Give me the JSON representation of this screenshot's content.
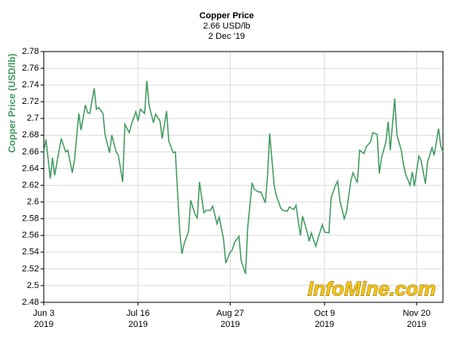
{
  "chart_data": {
    "type": "line",
    "title": "Copper Price",
    "subtitle": "2.66 USD/lb",
    "date_label": "2 Dec '19",
    "ylabel": "Copper Price (USD/lb)",
    "watermark": "InfoMine.com",
    "grid": true,
    "x": [
      "2019-06-03",
      "2019-06-04",
      "2019-06-06",
      "2019-06-07",
      "2019-06-08",
      "2019-06-10",
      "2019-06-11",
      "2019-06-13",
      "2019-06-14",
      "2019-06-16",
      "2019-06-17",
      "2019-06-19",
      "2019-06-20",
      "2019-06-22",
      "2019-06-23",
      "2019-06-24",
      "2019-06-26",
      "2019-06-27",
      "2019-06-28",
      "2019-06-30",
      "2019-07-01",
      "2019-07-03",
      "2019-07-04",
      "2019-07-06",
      "2019-07-07",
      "2019-07-09",
      "2019-07-10",
      "2019-07-12",
      "2019-07-13",
      "2019-07-15",
      "2019-07-16",
      "2019-07-17",
      "2019-07-19",
      "2019-07-20",
      "2019-07-21",
      "2019-07-23",
      "2019-07-24",
      "2019-07-26",
      "2019-07-27",
      "2019-07-29",
      "2019-07-30",
      "2019-08-01",
      "2019-08-02",
      "2019-08-04",
      "2019-08-05",
      "2019-08-06",
      "2019-08-08",
      "2019-08-09",
      "2019-08-11",
      "2019-08-12",
      "2019-08-13",
      "2019-08-15",
      "2019-08-16",
      "2019-08-18",
      "2019-08-19",
      "2019-08-21",
      "2019-08-22",
      "2019-08-24",
      "2019-08-25",
      "2019-08-27",
      "2019-08-28",
      "2019-08-29",
      "2019-08-31",
      "2019-09-01",
      "2019-09-03",
      "2019-09-04",
      "2019-09-06",
      "2019-09-07",
      "2019-09-09",
      "2019-09-10",
      "2019-09-12",
      "2019-09-13",
      "2019-09-14",
      "2019-09-16",
      "2019-09-17",
      "2019-09-19",
      "2019-09-20",
      "2019-09-22",
      "2019-09-23",
      "2019-09-25",
      "2019-09-26",
      "2019-09-28",
      "2019-09-29",
      "2019-10-01",
      "2019-10-02",
      "2019-10-03",
      "2019-10-05",
      "2019-10-06",
      "2019-10-08",
      "2019-10-09",
      "2019-10-11",
      "2019-10-12",
      "2019-10-14",
      "2019-10-15",
      "2019-10-16",
      "2019-10-18",
      "2019-10-19",
      "2019-10-21",
      "2019-10-22",
      "2019-10-24",
      "2019-10-25",
      "2019-10-27",
      "2019-10-28",
      "2019-10-30",
      "2019-10-31",
      "2019-11-02",
      "2019-11-03",
      "2019-11-04",
      "2019-11-06",
      "2019-11-07",
      "2019-11-08",
      "2019-11-10",
      "2019-11-11",
      "2019-11-13",
      "2019-11-14",
      "2019-11-15",
      "2019-11-17",
      "2019-11-18",
      "2019-11-19",
      "2019-11-21",
      "2019-11-22",
      "2019-11-24",
      "2019-11-25",
      "2019-11-27",
      "2019-11-28",
      "2019-11-30",
      "2019-12-01",
      "2019-12-02"
    ],
    "series": [
      {
        "name": "Copper Price",
        "color": "#3f9a5f",
        "values": [
          2.66,
          2.675,
          2.628,
          2.653,
          2.632,
          2.662,
          2.676,
          2.66,
          2.662,
          2.635,
          2.65,
          2.706,
          2.686,
          2.716,
          2.707,
          2.706,
          2.736,
          2.711,
          2.713,
          2.706,
          2.68,
          2.659,
          2.68,
          2.66,
          2.656,
          2.624,
          2.693,
          2.683,
          2.693,
          2.708,
          2.697,
          2.711,
          2.706,
          2.745,
          2.716,
          2.695,
          2.705,
          2.697,
          2.676,
          2.709,
          2.673,
          2.659,
          2.66,
          2.565,
          2.538,
          2.55,
          2.565,
          2.602,
          2.585,
          2.581,
          2.624,
          2.587,
          2.59,
          2.59,
          2.595,
          2.574,
          2.582,
          2.555,
          2.527,
          2.54,
          2.543,
          2.552,
          2.559,
          2.53,
          2.514,
          2.57,
          2.623,
          2.615,
          2.612,
          2.612,
          2.599,
          2.63,
          2.682,
          2.621,
          2.608,
          2.593,
          2.59,
          2.589,
          2.594,
          2.591,
          2.596,
          2.56,
          2.583,
          2.565,
          2.553,
          2.563,
          2.547,
          2.556,
          2.573,
          2.564,
          2.563,
          2.605,
          2.62,
          2.625,
          2.602,
          2.58,
          2.588,
          2.625,
          2.635,
          2.623,
          2.662,
          2.658,
          2.666,
          2.672,
          2.683,
          2.681,
          2.634,
          2.653,
          2.672,
          2.696,
          2.662,
          2.724,
          2.68,
          2.662,
          2.645,
          2.633,
          2.62,
          2.636,
          2.619,
          2.655,
          2.65,
          2.622,
          2.648,
          2.665,
          2.656,
          2.688,
          2.667,
          2.66
        ]
      }
    ],
    "xlim": [
      "2019-06-03",
      "2019-12-02"
    ],
    "xticks": [
      {
        "value": "2019-06-03",
        "label": "Jun 3\n2019"
      },
      {
        "value": "2019-07-16",
        "label": "Jul 16\n2019"
      },
      {
        "value": "2019-08-27",
        "label": "Aug 27\n2019"
      },
      {
        "value": "2019-10-09",
        "label": "Oct 9\n2019"
      },
      {
        "value": "2019-11-20",
        "label": "Nov 20\n2019"
      }
    ],
    "ylim": [
      2.48,
      2.78
    ],
    "yticks": [
      2.48,
      2.5,
      2.52,
      2.54,
      2.56,
      2.58,
      2.6,
      2.62,
      2.64,
      2.66,
      2.68,
      2.7,
      2.72,
      2.74,
      2.76,
      2.78
    ]
  }
}
